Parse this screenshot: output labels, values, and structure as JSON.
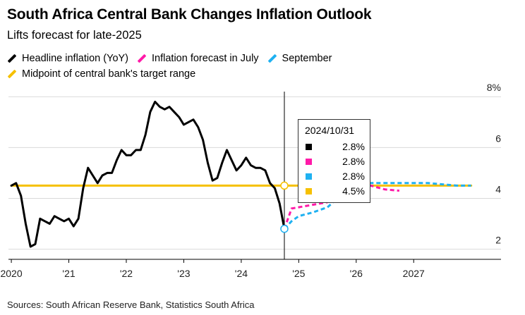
{
  "title": "South Africa Central Bank Changes Inflation Outlook",
  "subtitle": "Lifts forecast for late-2025",
  "legend": [
    {
      "label": "Headline inflation (YoY)",
      "color": "#000000",
      "style": "solid"
    },
    {
      "label": "Inflation forecast in July",
      "color": "#ff1aa8",
      "style": "dashed"
    },
    {
      "label": "September",
      "color": "#1fb1f1",
      "style": "dashed"
    },
    {
      "label": "Midpoint of central bank's target range",
      "color": "#f6c000",
      "style": "solid"
    }
  ],
  "source": "Sources: South African Reserve Bank, Statistics South Africa",
  "tooltip": {
    "date": "2024/10/31",
    "rows": [
      {
        "color": "#000000",
        "value": "2.8%"
      },
      {
        "color": "#ff1aa8",
        "value": "2.8%"
      },
      {
        "color": "#1fb1f1",
        "value": "2.8%"
      },
      {
        "color": "#f6c000",
        "value": "4.5%"
      }
    ]
  },
  "chart_data": {
    "type": "line",
    "x_ticks": [
      {
        "label": "2020",
        "x": 2020.0
      },
      {
        "label": "'21",
        "x": 2021.0
      },
      {
        "label": "'22",
        "x": 2022.0
      },
      {
        "label": "'23",
        "x": 2023.0
      },
      {
        "label": "'24",
        "x": 2024.0
      },
      {
        "label": "'25",
        "x": 2025.0
      },
      {
        "label": "'26",
        "x": 2026.0
      },
      {
        "label": "2027",
        "x": 2027.0
      }
    ],
    "xlim": [
      2019.95,
      2028.2
    ],
    "y_ticks": [
      {
        "label": "2",
        "y": 2
      },
      {
        "label": "4",
        "y": 4
      },
      {
        "label": "6",
        "y": 6
      },
      {
        "label": "8%",
        "y": 8
      }
    ],
    "ylim": [
      1.6,
      8.2
    ],
    "gridlines_y": [
      2,
      4,
      6,
      8
    ],
    "series": [
      {
        "name": "Headline inflation (YoY)",
        "color": "#000000",
        "style": "solid",
        "points": [
          [
            2020.0,
            4.5
          ],
          [
            2020.083,
            4.6
          ],
          [
            2020.167,
            4.1
          ],
          [
            2020.25,
            3.0
          ],
          [
            2020.333,
            2.1
          ],
          [
            2020.417,
            2.2
          ],
          [
            2020.5,
            3.2
          ],
          [
            2020.583,
            3.1
          ],
          [
            2020.667,
            3.0
          ],
          [
            2020.75,
            3.3
          ],
          [
            2020.833,
            3.2
          ],
          [
            2020.917,
            3.1
          ],
          [
            2021.0,
            3.2
          ],
          [
            2021.083,
            2.9
          ],
          [
            2021.167,
            3.2
          ],
          [
            2021.25,
            4.4
          ],
          [
            2021.333,
            5.2
          ],
          [
            2021.417,
            4.9
          ],
          [
            2021.5,
            4.6
          ],
          [
            2021.583,
            4.9
          ],
          [
            2021.667,
            5.0
          ],
          [
            2021.75,
            5.0
          ],
          [
            2021.833,
            5.5
          ],
          [
            2021.917,
            5.9
          ],
          [
            2022.0,
            5.7
          ],
          [
            2022.083,
            5.7
          ],
          [
            2022.167,
            5.9
          ],
          [
            2022.25,
            5.9
          ],
          [
            2022.333,
            6.5
          ],
          [
            2022.417,
            7.4
          ],
          [
            2022.5,
            7.8
          ],
          [
            2022.583,
            7.6
          ],
          [
            2022.667,
            7.5
          ],
          [
            2022.75,
            7.6
          ],
          [
            2022.833,
            7.4
          ],
          [
            2022.917,
            7.2
          ],
          [
            2023.0,
            6.9
          ],
          [
            2023.083,
            7.0
          ],
          [
            2023.167,
            7.1
          ],
          [
            2023.25,
            6.8
          ],
          [
            2023.333,
            6.3
          ],
          [
            2023.417,
            5.4
          ],
          [
            2023.5,
            4.7
          ],
          [
            2023.583,
            4.8
          ],
          [
            2023.667,
            5.4
          ],
          [
            2023.75,
            5.9
          ],
          [
            2023.833,
            5.5
          ],
          [
            2023.917,
            5.1
          ],
          [
            2024.0,
            5.3
          ],
          [
            2024.083,
            5.6
          ],
          [
            2024.167,
            5.3
          ],
          [
            2024.25,
            5.2
          ],
          [
            2024.333,
            5.2
          ],
          [
            2024.417,
            5.1
          ],
          [
            2024.5,
            4.6
          ],
          [
            2024.583,
            4.4
          ],
          [
            2024.667,
            3.8
          ],
          [
            2024.75,
            2.8
          ]
        ]
      },
      {
        "name": "Inflation forecast in July",
        "color": "#ff1aa8",
        "style": "dashed",
        "points": [
          [
            2024.75,
            2.8
          ],
          [
            2024.875,
            3.6
          ],
          [
            2025.0,
            3.65
          ],
          [
            2025.25,
            3.75
          ],
          [
            2025.5,
            3.85
          ],
          [
            2025.75,
            4.4
          ],
          [
            2026.0,
            4.5
          ],
          [
            2026.25,
            4.5
          ],
          [
            2026.5,
            4.35
          ],
          [
            2026.75,
            4.3
          ]
        ]
      },
      {
        "name": "September",
        "color": "#1fb1f1",
        "style": "dashed",
        "points": [
          [
            2024.75,
            2.8
          ],
          [
            2024.875,
            3.1
          ],
          [
            2025.0,
            3.3
          ],
          [
            2025.25,
            3.45
          ],
          [
            2025.5,
            3.65
          ],
          [
            2025.75,
            4.15
          ],
          [
            2026.0,
            4.5
          ],
          [
            2026.25,
            4.6
          ],
          [
            2026.5,
            4.6
          ],
          [
            2026.75,
            4.6
          ],
          [
            2027.0,
            4.6
          ],
          [
            2027.25,
            4.6
          ],
          [
            2027.5,
            4.55
          ],
          [
            2027.75,
            4.5
          ],
          [
            2028.0,
            4.5
          ]
        ]
      },
      {
        "name": "Midpoint of central bank's target range",
        "color": "#f6c000",
        "style": "solid",
        "points": [
          [
            2020.0,
            4.5
          ],
          [
            2028.0,
            4.5
          ]
        ]
      }
    ],
    "cursor": {
      "x": 2024.75
    },
    "markers": [
      {
        "x": 2024.75,
        "y": 2.8,
        "color": "#1fb1f1"
      },
      {
        "x": 2024.75,
        "y": 4.5,
        "color": "#f6c000"
      }
    ]
  }
}
